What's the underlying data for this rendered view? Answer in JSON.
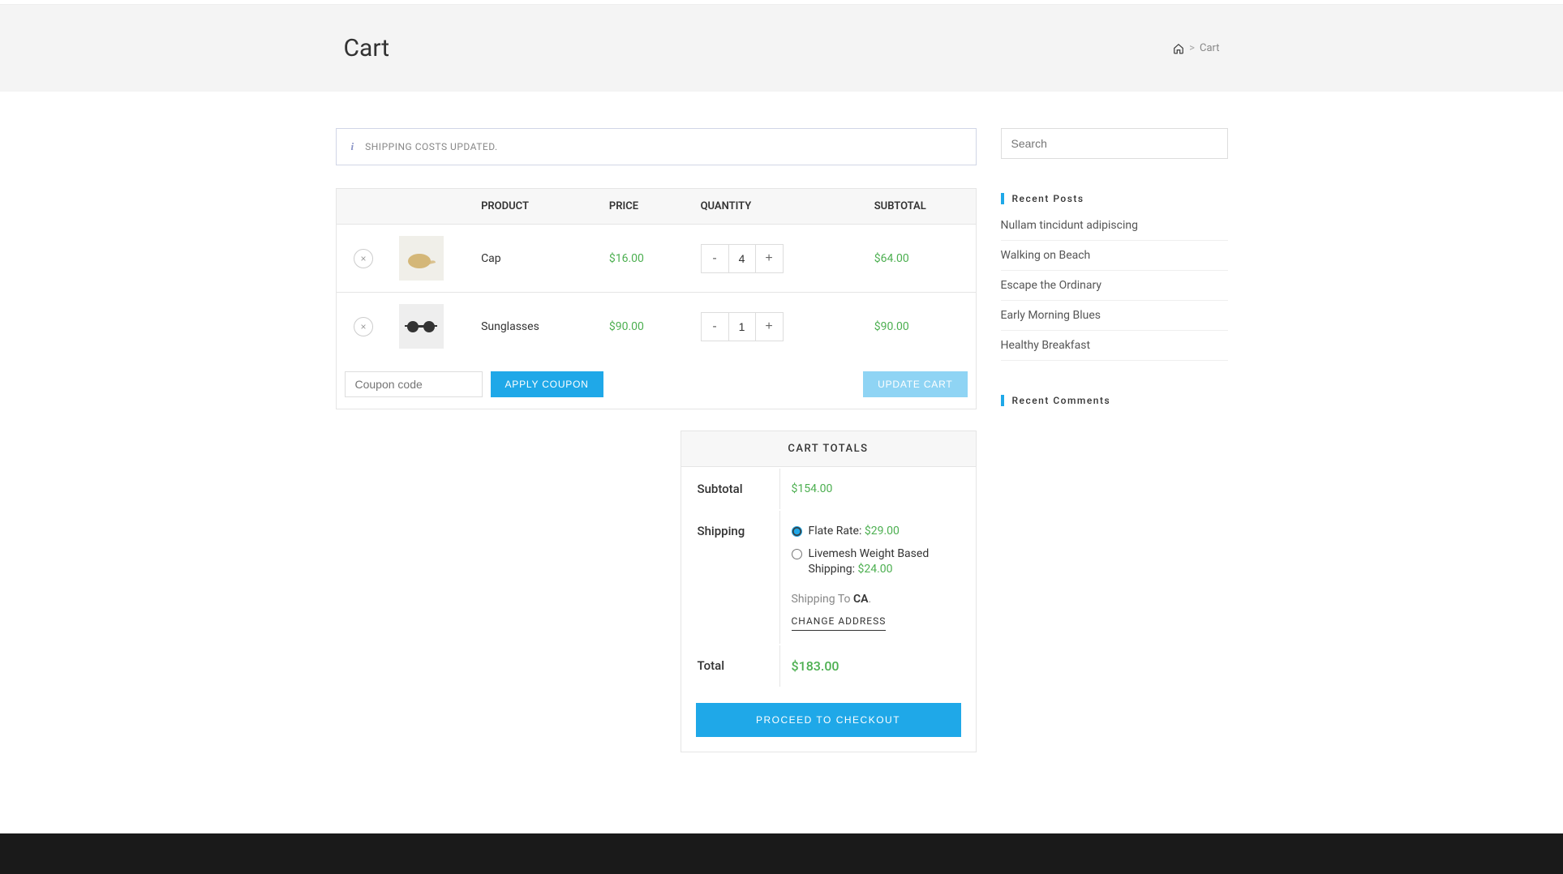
{
  "page": {
    "title": "Cart",
    "breadcrumb_current": "Cart",
    "breadcrumb_sep": ">"
  },
  "notice": {
    "text": "SHIPPING COSTS UPDATED."
  },
  "table": {
    "headers": {
      "product": "PRODUCT",
      "price": "PRICE",
      "quantity": "QUANTITY",
      "subtotal": "SUBTOTAL"
    }
  },
  "items": [
    {
      "name": "Cap",
      "price": "$16.00",
      "qty": "4",
      "subtotal": "$64.00",
      "thumb_bg": "#f0efe9",
      "thumb_color": "#d4b778"
    },
    {
      "name": "Sunglasses",
      "price": "$90.00",
      "qty": "1",
      "subtotal": "$90.00",
      "thumb_bg": "#eeeeee",
      "thumb_color": "#333333"
    }
  ],
  "coupon": {
    "placeholder": "Coupon code",
    "apply_label": "APPLY COUPON",
    "update_label": "UPDATE CART"
  },
  "totals": {
    "header": "CART TOTALS",
    "subtotal_label": "Subtotal",
    "subtotal_value": "$154.00",
    "shipping_label": "Shipping",
    "ship_opt1_text": "Flate Rate: ",
    "ship_opt1_price": "$29.00",
    "ship_opt2_text": "Livemesh Weight Based Shipping: ",
    "ship_opt2_price": "$24.00",
    "shipping_to_prefix": "Shipping To ",
    "shipping_to_dest": "CA",
    "shipping_to_suffix": ".",
    "change_address": "CHANGE ADDRESS",
    "total_label": "Total",
    "total_value": "$183.00",
    "checkout_label": "PROCEED TO CHECKOUT"
  },
  "sidebar": {
    "search_placeholder": "Search",
    "recent_posts_title": "Recent Posts",
    "recent_posts": [
      "Nullam tincidunt adipiscing",
      "Walking on Beach",
      "Escape the Ordinary",
      "Early Morning Blues",
      "Healthy Breakfast"
    ],
    "recent_comments_title": "Recent Comments"
  },
  "colors": {
    "accent": "#1fa8e8",
    "price_green": "#4caf50",
    "footer_bg": "#1a1a1a",
    "header_bg": "#f4f4f4"
  }
}
